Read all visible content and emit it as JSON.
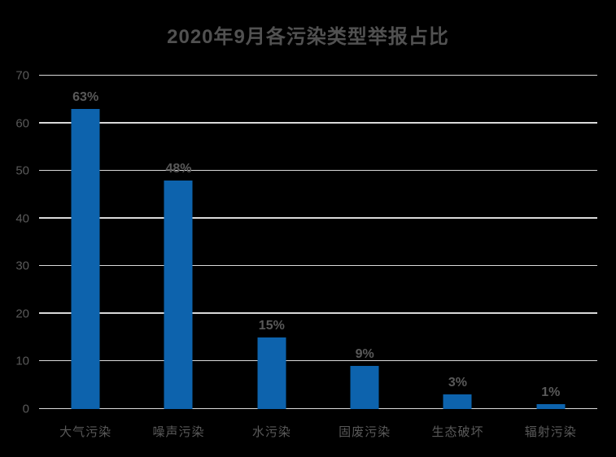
{
  "chart_data": {
    "type": "bar",
    "title": "2020年9月各污染类型举报占比",
    "categories": [
      "大气污染",
      "噪声污染",
      "水污染",
      "固废污染",
      "生态破坏",
      "辐射污染"
    ],
    "values": [
      63,
      48,
      15,
      9,
      3,
      1
    ],
    "data_labels": [
      "63%",
      "48%",
      "15%",
      "9%",
      "3%",
      "1%"
    ],
    "xlabel": "",
    "ylabel": "",
    "ylim": [
      0,
      70
    ],
    "yticks": [
      0,
      10,
      20,
      30,
      40,
      50,
      60,
      70
    ],
    "grid": true,
    "legend": "none",
    "colors": {
      "background": "#000000",
      "bar": "#0d63ad",
      "text": "#595959",
      "title": "#515151",
      "gridline": "#d9d9d9"
    }
  }
}
